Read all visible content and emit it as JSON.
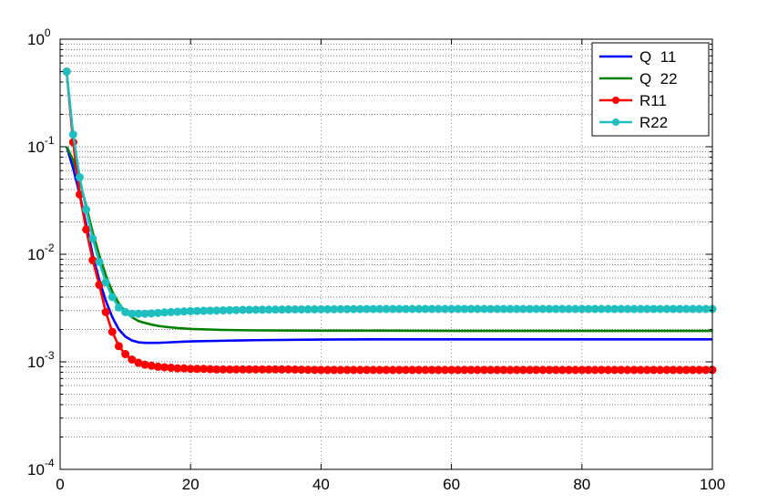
{
  "chart_data": {
    "type": "line",
    "y_scale": "log",
    "xlim": [
      0,
      100
    ],
    "ylim": [
      0.0001,
      1
    ],
    "x_ticks": [
      0,
      20,
      40,
      60,
      80,
      100
    ],
    "x_tick_labels": [
      "0",
      "20",
      "40",
      "60",
      "80",
      "100"
    ],
    "y_ticks": [
      0.0001,
      0.001,
      0.01,
      0.1,
      1
    ],
    "y_tick_labels": [
      {
        "base": "10",
        "exp": "-4"
      },
      {
        "base": "10",
        "exp": "-3"
      },
      {
        "base": "10",
        "exp": "-2"
      },
      {
        "base": "10",
        "exp": "-1"
      },
      {
        "base": "10",
        "exp": "0"
      }
    ],
    "grid": true,
    "legend_position": "top-right",
    "series": [
      {
        "name": "Q  11",
        "color": "#0000ff",
        "marker": "none",
        "x": [
          1,
          2,
          3,
          4,
          5,
          6,
          7,
          8,
          9,
          10,
          11,
          12,
          13,
          14,
          15,
          16,
          18,
          20,
          25,
          30,
          40,
          50,
          60,
          70,
          80,
          90,
          100
        ],
        "y": [
          0.1,
          0.063,
          0.036,
          0.019,
          0.0098,
          0.0058,
          0.0037,
          0.0026,
          0.002,
          0.00172,
          0.00158,
          0.00152,
          0.0015,
          0.0015,
          0.0015,
          0.00151,
          0.00153,
          0.00155,
          0.00157,
          0.00159,
          0.00161,
          0.00162,
          0.00162,
          0.00162,
          0.00162,
          0.00162,
          0.00162
        ]
      },
      {
        "name": "Q  22",
        "color": "#008000",
        "marker": "none",
        "x": [
          1,
          2,
          3,
          4,
          5,
          6,
          7,
          8,
          9,
          10,
          11,
          12,
          13,
          14,
          15,
          16,
          18,
          20,
          25,
          30,
          40,
          50,
          60,
          70,
          80,
          90,
          100
        ],
        "y": [
          0.1,
          0.075,
          0.048,
          0.028,
          0.016,
          0.0098,
          0.0064,
          0.0045,
          0.0035,
          0.0029,
          0.0026,
          0.0024,
          0.0023,
          0.00222,
          0.00216,
          0.00212,
          0.00206,
          0.00202,
          0.00198,
          0.00196,
          0.00195,
          0.00195,
          0.00194,
          0.00194,
          0.00194,
          0.00194,
          0.00194
        ]
      },
      {
        "name": "R11",
        "color": "#ff0000",
        "marker": "circle",
        "x": [
          1,
          2,
          3,
          4,
          5,
          6,
          7,
          8,
          9,
          10,
          11,
          12,
          13,
          14,
          15,
          16,
          17,
          18,
          19,
          20,
          22,
          24,
          26,
          28,
          30,
          35,
          40,
          45,
          50,
          55,
          60,
          65,
          70,
          75,
          80,
          85,
          90,
          95,
          100
        ],
        "y": [
          0.5,
          0.11,
          0.036,
          0.017,
          0.0088,
          0.0052,
          0.0029,
          0.0019,
          0.0014,
          0.00118,
          0.00105,
          0.00098,
          0.00094,
          0.00092,
          0.0009,
          0.00089,
          0.00088,
          0.00087,
          0.00087,
          0.00086,
          0.00086,
          0.00085,
          0.00085,
          0.00085,
          0.00085,
          0.00085,
          0.00084,
          0.00084,
          0.00084,
          0.00084,
          0.00084,
          0.00084,
          0.00084,
          0.00084,
          0.00084,
          0.00084,
          0.00084,
          0.00084,
          0.00084
        ]
      },
      {
        "name": "R22",
        "color": "#1fbfbf",
        "marker": "circle",
        "x": [
          1,
          2,
          3,
          4,
          5,
          6,
          7,
          8,
          9,
          10,
          11,
          12,
          13,
          14,
          15,
          16,
          17,
          18,
          19,
          20,
          22,
          24,
          26,
          28,
          30,
          35,
          40,
          45,
          50,
          55,
          60,
          65,
          70,
          75,
          80,
          85,
          90,
          95,
          100
        ],
        "y": [
          0.5,
          0.13,
          0.052,
          0.026,
          0.014,
          0.0085,
          0.0055,
          0.004,
          0.0032,
          0.0029,
          0.0028,
          0.0028,
          0.0028,
          0.00282,
          0.00285,
          0.00288,
          0.0029,
          0.00292,
          0.00294,
          0.00296,
          0.00298,
          0.003,
          0.00302,
          0.00304,
          0.00305,
          0.00307,
          0.00308,
          0.00309,
          0.0031,
          0.0031,
          0.0031,
          0.0031,
          0.0031,
          0.0031,
          0.0031,
          0.0031,
          0.0031,
          0.0031,
          0.0031
        ]
      }
    ]
  }
}
